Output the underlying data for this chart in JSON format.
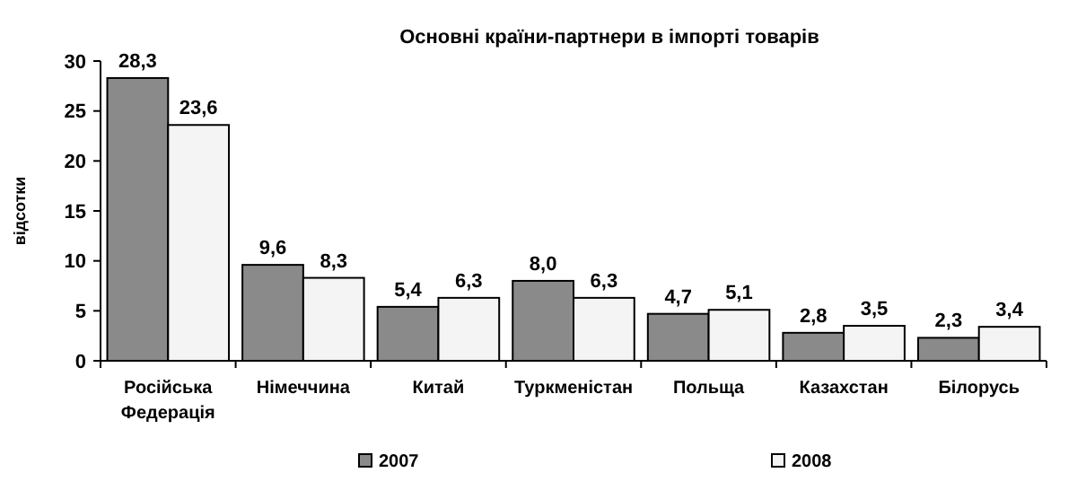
{
  "chart_data": {
    "type": "bar",
    "title": "Основні країни-партнери в імпорті товарів",
    "ylabel": "відсотки",
    "categories": [
      "Російська Федерація",
      "Німеччина",
      "Китай",
      "Туркменістан",
      "Польща",
      "Казахстан",
      "Білорусь"
    ],
    "series": [
      {
        "name": "2007",
        "color": "#8a8a8a",
        "values": [
          28.3,
          9.6,
          5.4,
          8.0,
          4.7,
          2.8,
          2.3
        ],
        "value_labels": [
          "28,3",
          "9,6",
          "5,4",
          "8,0",
          "4,7",
          "2,8",
          "2,3"
        ]
      },
      {
        "name": "2008",
        "color": "#f4f4f4",
        "values": [
          23.6,
          8.3,
          6.3,
          6.3,
          5.1,
          3.5,
          3.4
        ],
        "value_labels": [
          "23,6",
          "8,3",
          "6,3",
          "6,3",
          "5,1",
          "3,5",
          "3,4"
        ]
      }
    ],
    "ylim": [
      0,
      30
    ],
    "yticks": [
      0,
      5,
      10,
      15,
      20,
      25,
      30
    ],
    "grid": false,
    "legend": "bottom"
  }
}
